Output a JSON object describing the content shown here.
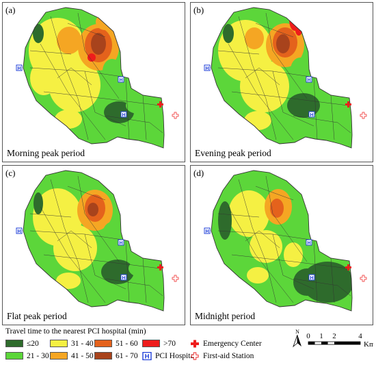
{
  "panels": [
    {
      "letter": "(a)",
      "title": "Morning peak period"
    },
    {
      "letter": "(b)",
      "title": "Evening peak period"
    },
    {
      "letter": "(c)",
      "title": "Flat peak period"
    },
    {
      "letter": "(d)",
      "title": "Midnight period"
    }
  ],
  "legend": {
    "title": "Travel time to the nearest PCI hospital (min)",
    "classes": [
      {
        "label": "≤20",
        "color": "#2e6b2c"
      },
      {
        "label": "21 - 30",
        "color": "#5cd63a"
      },
      {
        "label": "31 - 40",
        "color": "#f5f043"
      },
      {
        "label": "41 - 50",
        "color": "#f5a623"
      },
      {
        "label": "51 - 60",
        "color": "#e4621c"
      },
      {
        "label": "61 - 70",
        "color": "#a8431c"
      },
      {
        "label": ">70",
        "color": "#ee1c1c"
      }
    ],
    "symbols": [
      {
        "label": "PCI Hospital",
        "icon": "pci-hospital-icon"
      },
      {
        "label": "Emergency Center",
        "icon": "emergency-center-icon"
      },
      {
        "label": "First-aid Station",
        "icon": "first-aid-station-icon"
      }
    ]
  },
  "scale": {
    "ticks": [
      "0",
      "1",
      "2",
      "4"
    ],
    "unit": "Km",
    "north": "N"
  }
}
